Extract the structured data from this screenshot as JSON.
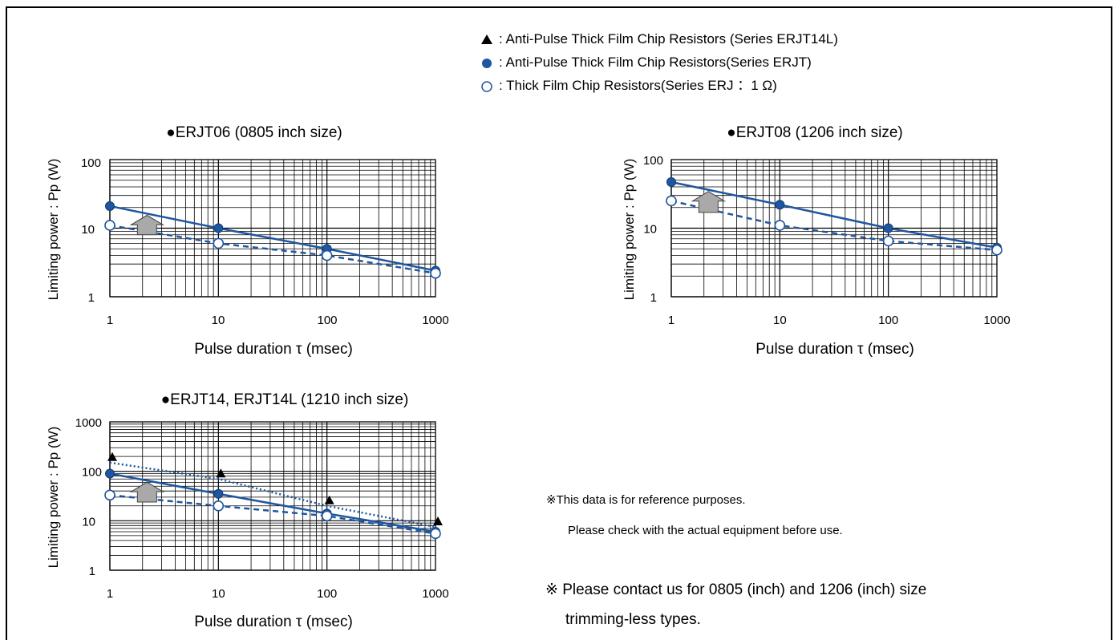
{
  "legend": [
    {
      "symbol": "triangle-filled",
      "label": ": Anti-Pulse Thick Film Chip Resistors (Series ERJT14L)"
    },
    {
      "symbol": "circle-filled",
      "label": ": Anti-Pulse Thick Film Chip Resistors(Series ERJT)"
    },
    {
      "symbol": "circle-open",
      "label": ": Thick Film Chip Resistors(Series ERJ ：1 Ω)"
    }
  ],
  "colors": {
    "blue": "#1e56a0",
    "dark": "#0d3b7a",
    "arrow": "#a9a9a9"
  },
  "notes": {
    "reference_line1": "※This data is for reference purposes.",
    "reference_line2": "Please check with the actual equipment before use.",
    "contact_line1": "※ Please contact us for 0805 (inch) and 1206 (inch) size",
    "contact_line2": "trimming-less types."
  },
  "chart_data": [
    {
      "type": "line",
      "title": "●ERJT06 (0805 inch size)",
      "xlabel": "Pulse duration τ (msec)",
      "ylabel": "Limiting power : Pp (W)",
      "xscale": "log",
      "yscale": "log",
      "xlim": [
        1,
        1000
      ],
      "ylim": [
        1,
        100
      ],
      "xticks": [
        "1",
        "10",
        "100",
        "1000"
      ],
      "yticks": [
        "1",
        "10",
        "100"
      ],
      "grid": true,
      "series": [
        {
          "name": "Anti-Pulse Thick Film Chip Resistors(Series ERJT)",
          "marker": "circle-filled",
          "style": "solid",
          "x": [
            1,
            10,
            100,
            1000
          ],
          "y": [
            21,
            10,
            5,
            2.4
          ]
        },
        {
          "name": "Thick Film Chip Resistors(Series ERJ ：1 Ω)",
          "marker": "circle-open",
          "style": "dashed",
          "x": [
            1,
            10,
            100,
            1000
          ],
          "y": [
            11,
            6,
            4,
            2.2
          ]
        }
      ]
    },
    {
      "type": "line",
      "title": "●ERJT08 (1206 inch size)",
      "xlabel": "Pulse duration τ (msec)",
      "ylabel": "Limiting power : Pp (W)",
      "xscale": "log",
      "yscale": "log",
      "xlim": [
        1,
        1000
      ],
      "ylim": [
        1,
        100
      ],
      "xticks": [
        "1",
        "10",
        "100",
        "1000"
      ],
      "yticks": [
        "1",
        "10",
        "100"
      ],
      "grid": true,
      "series": [
        {
          "name": "Anti-Pulse Thick Film Chip Resistors(Series ERJT)",
          "marker": "circle-filled",
          "style": "solid",
          "x": [
            1,
            10,
            100,
            1000
          ],
          "y": [
            47,
            22,
            10,
            5.2
          ]
        },
        {
          "name": "Thick Film Chip Resistors(Series ERJ ：1 Ω)",
          "marker": "circle-open",
          "style": "dashed",
          "x": [
            1,
            10,
            100,
            1000
          ],
          "y": [
            25,
            11,
            6.5,
            4.8
          ]
        }
      ]
    },
    {
      "type": "line",
      "title": "●ERJT14, ERJT14L (1210 inch size)",
      "xlabel": "Pulse duration τ (msec)",
      "ylabel": "Limiting power : Pp (W)",
      "xscale": "log",
      "yscale": "log",
      "xlim": [
        1,
        1000
      ],
      "ylim": [
        1,
        1000
      ],
      "xticks": [
        "1",
        "10",
        "100",
        "1000"
      ],
      "yticks": [
        "1",
        "10",
        "100",
        "1000"
      ],
      "grid": true,
      "series": [
        {
          "name": "Anti-Pulse Thick Film Chip Resistors (Series ERJT14L)",
          "marker": "triangle-filled",
          "style": "dotted",
          "x": [
            1,
            10,
            100,
            1000
          ],
          "y": [
            150,
            70,
            20,
            7.5
          ]
        },
        {
          "name": "Anti-Pulse Thick Film Chip Resistors(Series ERJT)",
          "marker": "circle-filled",
          "style": "solid",
          "x": [
            1,
            10,
            100,
            1000
          ],
          "y": [
            90,
            35,
            14,
            6
          ]
        },
        {
          "name": "Thick Film Chip Resistors(Series ERJ ：1 Ω)",
          "marker": "circle-open",
          "style": "dashed",
          "x": [
            1,
            10,
            100,
            1000
          ],
          "y": [
            33,
            20,
            12.5,
            5.5
          ]
        }
      ]
    }
  ]
}
